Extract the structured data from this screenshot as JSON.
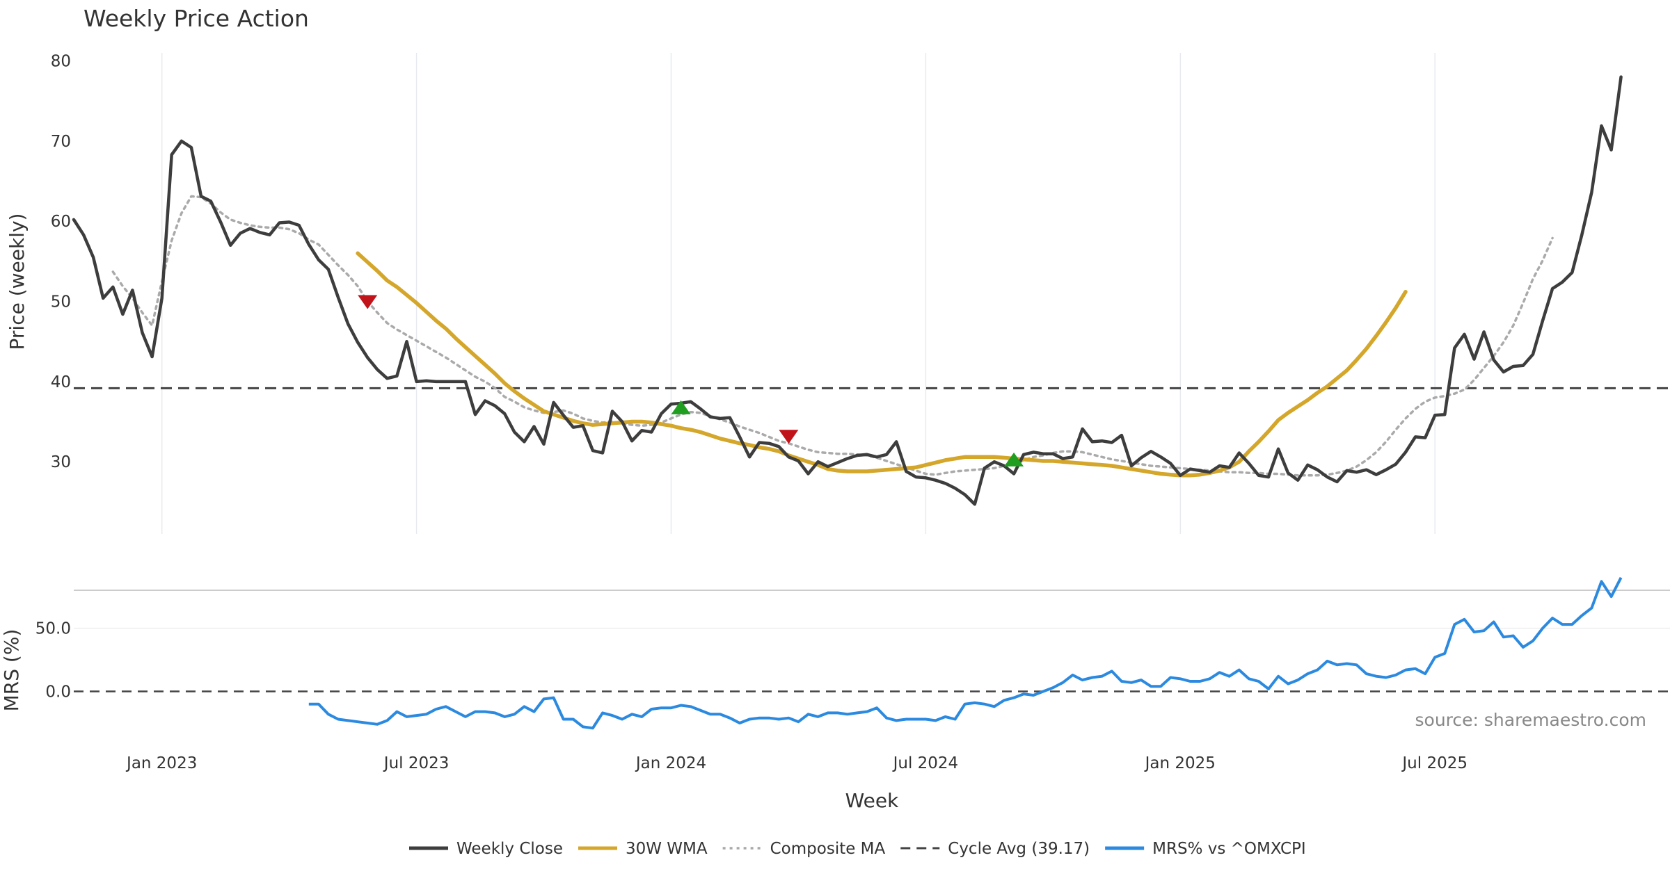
{
  "chart_data": {
    "type": "line",
    "title": "Weekly Price Action",
    "xlabel": "Week",
    "source": "source: sharemaestro.com",
    "x_tick_labels": [
      "Jan 2023",
      "Jul 2023",
      "Jan 2024",
      "Jul 2024",
      "Jan 2025",
      "Jul 2025"
    ],
    "x_tick_weeks": [
      17,
      43,
      69,
      95,
      121,
      147
    ],
    "price_panel": {
      "ylabel": "Price (weekly)",
      "ylim": [
        21,
        81
      ],
      "yticks": [
        30,
        40,
        50,
        60,
        70,
        80
      ],
      "cycle_avg": 39.17,
      "series": [
        {
          "name": "Weekly Close",
          "color": "#3d3d3d",
          "start_week": 8,
          "values": [
            60.2,
            58.3,
            55.5,
            50.4,
            51.8,
            48.4,
            51.4,
            46.1,
            43.1,
            50.4,
            68.3,
            70.0,
            69.2,
            63.1,
            62.5,
            59.9,
            57.0,
            58.5,
            59.1,
            58.6,
            58.3,
            59.8,
            59.9,
            59.5,
            57.1,
            55.2,
            54.0,
            50.5,
            47.2,
            44.9,
            43.0,
            41.5,
            40.4,
            40.7,
            45.0,
            40.0,
            40.1,
            40.0,
            40.0,
            40.0,
            40.0,
            35.9,
            37.6,
            37.0,
            36.0,
            33.7,
            32.5,
            34.4,
            32.2,
            37.4,
            35.8,
            34.3,
            34.5,
            31.4,
            31.1,
            36.3,
            35.0,
            32.6,
            33.9,
            33.7,
            36.0,
            37.2,
            37.3,
            37.5,
            36.6,
            35.6,
            35.4,
            35.5,
            33.1,
            30.6,
            32.4,
            32.3,
            31.9,
            30.6,
            30.1,
            28.5,
            30.0,
            29.4,
            29.9,
            30.4,
            30.8,
            30.9,
            30.6,
            30.9,
            32.5,
            28.8,
            28.1,
            28.0,
            27.7,
            27.3,
            26.7,
            25.9,
            24.7,
            29.2,
            30.0,
            29.5,
            28.5,
            30.9,
            31.2,
            31.0,
            31.0,
            30.4,
            30.6,
            34.1,
            32.5,
            32.6,
            32.4,
            33.3,
            29.5,
            30.5,
            31.3,
            30.6,
            29.8,
            28.3,
            29.1,
            28.9,
            28.7,
            29.5,
            29.3,
            31.1,
            29.8,
            28.3,
            28.1,
            31.6,
            28.6,
            27.7,
            29.6,
            29.0,
            28.1,
            27.5,
            28.9,
            28.7,
            29.0,
            28.4,
            29.0,
            29.7,
            31.2,
            33.1,
            33.0,
            35.8,
            35.9,
            44.2,
            45.9,
            42.8,
            46.2,
            42.7,
            41.2,
            41.9,
            42.0,
            43.4,
            47.6,
            51.6,
            52.4,
            53.6,
            58.3,
            63.6,
            71.9,
            68.9,
            78.0
          ]
        },
        {
          "name": "30W WMA",
          "color": "#d4a62a",
          "start_week": 37,
          "values": [
            56.0,
            54.9,
            53.8,
            52.6,
            51.8,
            50.8,
            49.8,
            48.7,
            47.6,
            46.6,
            45.4,
            44.3,
            43.2,
            42.1,
            41.0,
            39.8,
            38.8,
            37.9,
            37.1,
            36.3,
            35.9,
            35.5,
            35.1,
            34.8,
            34.6,
            34.7,
            34.8,
            34.9,
            35.0,
            35.0,
            34.9,
            34.7,
            34.5,
            34.2,
            34.0,
            33.7,
            33.3,
            32.9,
            32.6,
            32.3,
            32.1,
            31.8,
            31.6,
            31.3,
            30.8,
            30.4,
            30.0,
            29.6,
            29.1,
            28.9,
            28.8,
            28.8,
            28.8,
            28.9,
            29.0,
            29.1,
            29.2,
            29.3,
            29.6,
            29.9,
            30.2,
            30.4,
            30.6,
            30.6,
            30.6,
            30.6,
            30.5,
            30.4,
            30.3,
            30.2,
            30.1,
            30.1,
            30.0,
            29.9,
            29.8,
            29.7,
            29.6,
            29.5,
            29.3,
            29.1,
            28.9,
            28.7,
            28.5,
            28.4,
            28.3,
            28.3,
            28.4,
            28.6,
            28.9,
            29.3,
            30.0,
            31.3,
            32.5,
            33.8,
            35.2,
            36.1,
            36.9,
            37.7,
            38.6,
            39.4,
            40.4,
            41.4,
            42.7,
            44.1,
            45.7,
            47.4,
            49.2,
            51.2
          ]
        },
        {
          "name": "Composite MA",
          "color": "#aaaaaa",
          "start_week": 12,
          "values": [
            53.7,
            51.9,
            50.4,
            48.6,
            47.0,
            52.5,
            57.6,
            61.0,
            63.1,
            63.0,
            62.2,
            61.1,
            60.2,
            59.8,
            59.5,
            59.3,
            59.2,
            59.2,
            59.0,
            58.5,
            57.7,
            57.1,
            55.8,
            54.5,
            53.3,
            51.9,
            50.0,
            48.6,
            47.3,
            46.5,
            45.8,
            45.1,
            44.4,
            43.7,
            43.0,
            42.2,
            41.4,
            40.6,
            40.0,
            39.2,
            38.1,
            37.5,
            36.8,
            36.4,
            36.1,
            36.2,
            36.4,
            36.0,
            35.4,
            35.1,
            34.9,
            35.0,
            34.8,
            34.6,
            34.5,
            34.6,
            34.9,
            35.4,
            35.9,
            36.2,
            36.1,
            35.7,
            35.3,
            34.9,
            34.4,
            34.0,
            33.6,
            33.1,
            32.6,
            32.3,
            31.9,
            31.5,
            31.2,
            31.1,
            31.0,
            31.0,
            30.9,
            30.8,
            30.5,
            30.1,
            29.7,
            29.3,
            28.9,
            28.5,
            28.4,
            28.6,
            28.8,
            28.9,
            29.0,
            29.1,
            29.2,
            29.5,
            29.7,
            30.2,
            30.6,
            30.8,
            31.1,
            31.3,
            31.3,
            31.2,
            30.9,
            30.6,
            30.3,
            30.1,
            29.9,
            29.7,
            29.5,
            29.4,
            29.3,
            29.2,
            29.1,
            29.0,
            28.9,
            28.8,
            28.7,
            28.7,
            28.6,
            28.6,
            28.5,
            28.5,
            28.4,
            28.3,
            28.3,
            28.3,
            28.4,
            28.6,
            28.9,
            29.4,
            30.2,
            31.2,
            32.5,
            34.0,
            35.4,
            36.6,
            37.5,
            38.0,
            38.2,
            38.5,
            39.0,
            40.2,
            41.7,
            43.2,
            44.9,
            47.0,
            49.8,
            52.8,
            55.1,
            57.9
          ]
        }
      ],
      "markers": [
        {
          "type": "sell",
          "week": 38,
          "price": 50.0,
          "color": "#c0131a"
        },
        {
          "type": "buy",
          "week": 70,
          "price": 36.7,
          "color": "#1f9e1f"
        },
        {
          "type": "sell",
          "week": 81,
          "price": 33.2,
          "color": "#c0131a"
        },
        {
          "type": "buy",
          "week": 104,
          "price": 30.2,
          "color": "#1f9e1f"
        }
      ]
    },
    "mrs_panel": {
      "ylabel": "MRS (%)",
      "ylim": [
        -36,
        80
      ],
      "yticks": [
        0,
        50
      ],
      "ytick_labels": [
        "0.0",
        "50.0"
      ],
      "zero_line": 0,
      "series": {
        "name": "MRS% vs ^OMXCPI",
        "color": "#2b8ae0",
        "start_week": 32,
        "values": [
          -10,
          -10,
          -18,
          -22,
          -23,
          -24,
          -25,
          -26,
          -23,
          -16,
          -20,
          -19,
          -18,
          -14,
          -12,
          -16,
          -20,
          -16,
          -16,
          -17,
          -20,
          -18,
          -12,
          -16,
          -6,
          -5,
          -22,
          -22,
          -28,
          -29,
          -17,
          -19,
          -22,
          -18,
          -20,
          -14,
          -13,
          -13,
          -11,
          -12,
          -15,
          -18,
          -18,
          -21,
          -25,
          -22,
          -21,
          -21,
          -22,
          -21,
          -24,
          -18,
          -20,
          -17,
          -17,
          -18,
          -17,
          -16,
          -13,
          -21,
          -23,
          -22,
          -22,
          -22,
          -23,
          -20,
          -22,
          -10,
          -9,
          -10,
          -12,
          -7,
          -5,
          -2,
          -3,
          0,
          3,
          7,
          13,
          9,
          11,
          12,
          16,
          8,
          7,
          9,
          4,
          4,
          11,
          10,
          8,
          8,
          10,
          15,
          12,
          17,
          10,
          8,
          2,
          12,
          6,
          9,
          14,
          17,
          24,
          21,
          22,
          21,
          14,
          12,
          11,
          13,
          17,
          18,
          14,
          27,
          30,
          53,
          57,
          47,
          48,
          55,
          43,
          44,
          35,
          40,
          50,
          58,
          53,
          53,
          60,
          66,
          87,
          75,
          90
        ]
      }
    },
    "legend": [
      {
        "label": "Weekly Close",
        "color": "#3d3d3d",
        "style": "solid"
      },
      {
        "label": "30W WMA",
        "color": "#d4a62a",
        "style": "solid"
      },
      {
        "label": "Composite MA",
        "color": "#aaaaaa",
        "style": "dotted"
      },
      {
        "label": "Cycle Avg (39.17)",
        "color": "#444444",
        "style": "dashed"
      },
      {
        "label": "MRS% vs ^OMXCPI",
        "color": "#2b8ae0",
        "style": "solid"
      }
    ]
  }
}
